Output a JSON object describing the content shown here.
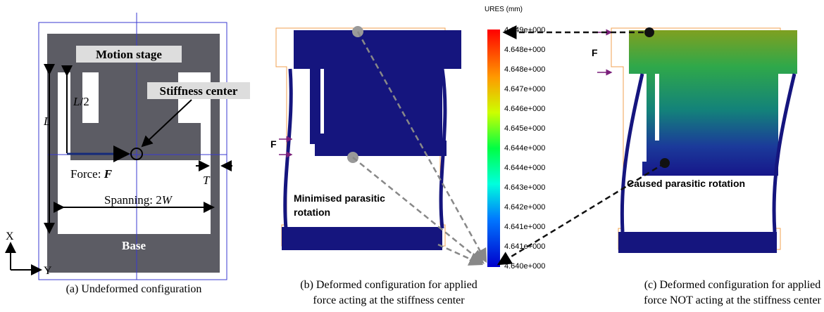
{
  "panel_a": {
    "motion_stage": "Motion stage",
    "stiffness_center": "Stiffness center",
    "length": "L",
    "half_length": {
      "symbol": "L",
      "suffix": "/2"
    },
    "force": {
      "prefix": "Force: ",
      "symbol": "F"
    },
    "thickness": "T",
    "spanning": {
      "prefix": "Spanning: 2",
      "symbol": "W"
    },
    "base": "Base",
    "axis_x": "X",
    "axis_y": "Y",
    "caption": "(a) Undeformed configuration"
  },
  "panel_b": {
    "force": "F",
    "note": [
      "Minimised parasitic",
      "rotation"
    ],
    "caption": [
      "(b) Deformed configuration for applied",
      "force acting at the stiffness center"
    ]
  },
  "colorbar": {
    "title": "URES (mm)",
    "labels": [
      "4.649e+000",
      "4.648e+000",
      "4.648e+000",
      "4.647e+000",
      "4.646e+000",
      "4.645e+000",
      "4.644e+000",
      "4.644e+000",
      "4.643e+000",
      "4.642e+000",
      "4.641e+000",
      "4.641e+000",
      "4.640e+000"
    ]
  },
  "panel_c": {
    "force": "F",
    "note": "Caused parasitic rotation",
    "caption": [
      "(c) Deformed configuration for applied",
      "force NOT acting at the stiffness center"
    ]
  }
}
